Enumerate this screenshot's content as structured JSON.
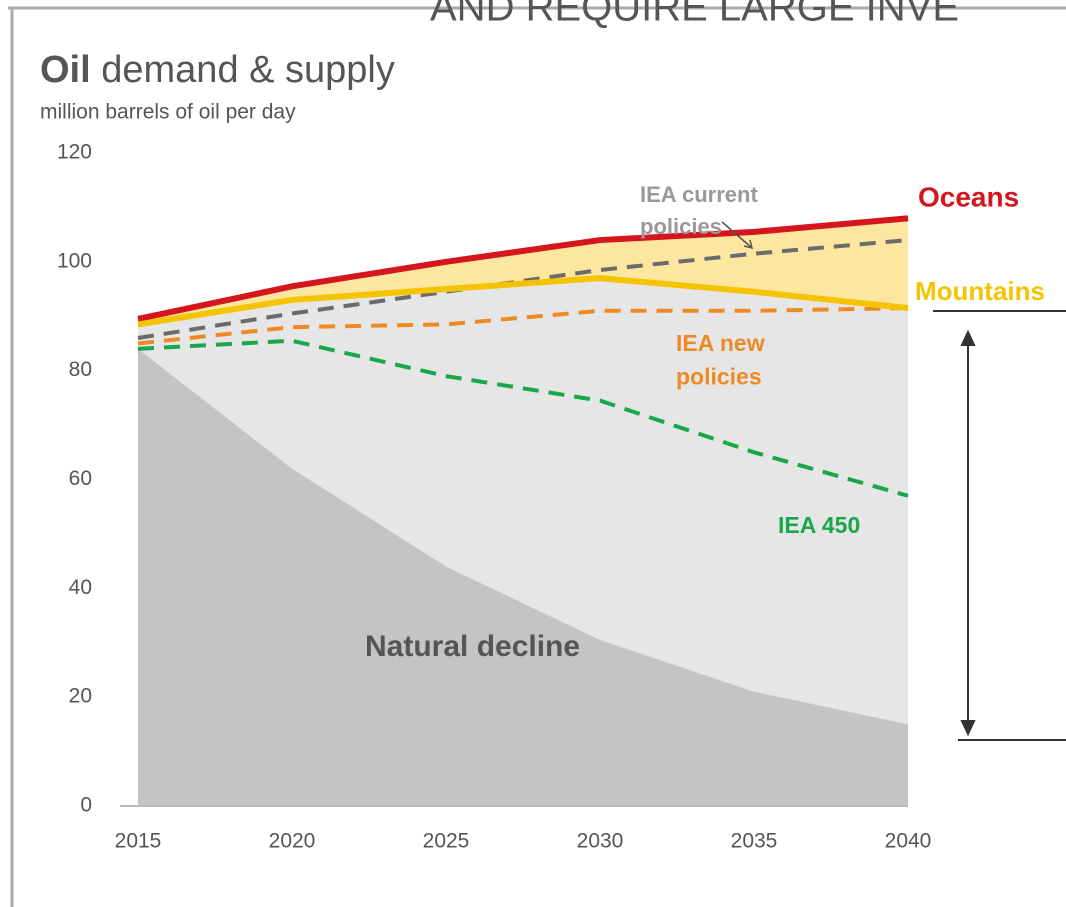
{
  "header": "AND REQUIRE LARGE INVE",
  "chart_data": {
    "type": "line",
    "title_emphasis": "Oil",
    "title": "demand & supply",
    "subtitle": "million barrels of oil per day",
    "x": [
      2015,
      2020,
      2025,
      2030,
      2035,
      2040
    ],
    "xlim": [
      2015,
      2040
    ],
    "xticks": [
      2015,
      2020,
      2025,
      2030,
      2035,
      2040
    ],
    "ylim": [
      0,
      120
    ],
    "yticks": [
      0,
      20,
      40,
      60,
      80,
      100,
      120
    ],
    "series": [
      {
        "name": "Oceans",
        "color": "#d5161e",
        "fill": "#fde7a0",
        "dashed": false,
        "values": [
          89.5,
          95.5,
          100,
          104,
          105.5,
          108
        ]
      },
      {
        "name": "Mountains",
        "color": "#f5c400",
        "fill": "#e6e6e6",
        "dashed": false,
        "values": [
          88.5,
          93,
          95,
          97,
          94.5,
          91.5
        ]
      },
      {
        "name": "Natural decline",
        "color": "#c4c4c4",
        "fill": "#c4c4c4",
        "area_only": true,
        "values": [
          84,
          62,
          44,
          30.5,
          21,
          15
        ]
      },
      {
        "name": "IEA current policies",
        "color": "#6b6b6b",
        "dashed": true,
        "values": [
          86,
          90.5,
          94.5,
          98.5,
          101.5,
          104
        ]
      },
      {
        "name": "IEA new policies",
        "color": "#ee8a25",
        "dashed": true,
        "values": [
          85,
          88,
          88.5,
          91,
          91,
          91.5
        ]
      },
      {
        "name": "IEA 450",
        "color": "#1aa64b",
        "dashed": true,
        "values": [
          84,
          85.5,
          79,
          74.5,
          65,
          57
        ]
      }
    ]
  }
}
